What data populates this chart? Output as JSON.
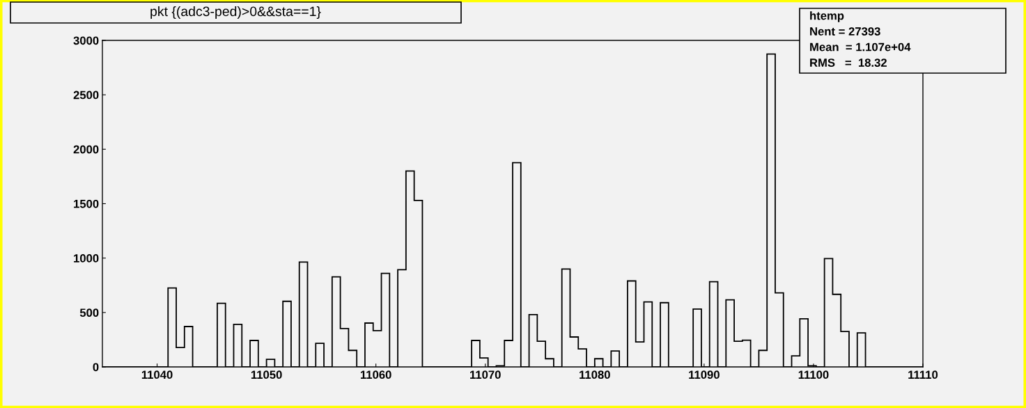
{
  "chart_data": {
    "type": "histogram",
    "title": "pkt {(adc3-ped)>0&&sta==1}",
    "annotations": [
      "htemp",
      "Nent = 27393",
      "Mean  = 1.107e+04",
      "RMS   =  18.32"
    ],
    "bins": [
      11035,
      11035.75,
      11036.5,
      11037.25,
      11038,
      11038.75,
      11039.5,
      11040.25,
      11041,
      11041.75,
      11042.5,
      11043.25,
      11044,
      11044.75,
      11045.5,
      11046.25,
      11047,
      11047.75,
      11048.5,
      11049.25,
      11050,
      11050.75,
      11051.5,
      11052.25,
      11053,
      11053.75,
      11054.5,
      11055.25,
      11056,
      11056.75,
      11057.5,
      11058.25,
      11059,
      11059.75,
      11060.5,
      11061.25,
      11062,
      11062.75,
      11063.5,
      11064.25,
      11065,
      11065.75,
      11066.5,
      11067.25,
      11068,
      11068.75,
      11069.5,
      11070.25,
      11071,
      11071.75,
      11072.5,
      11073.25,
      11074,
      11074.75,
      11075.5,
      11076.25,
      11077,
      11077.75,
      11078.5,
      11079.25,
      11080,
      11080.75,
      11081.5,
      11082.25,
      11083,
      11083.75,
      11084.5,
      11085.25,
      11086,
      11086.75,
      11087.5,
      11088.25,
      11089,
      11089.75,
      11090.5,
      11091.25,
      11092,
      11092.75,
      11093.5,
      11094.25,
      11095,
      11095.75,
      11096.5,
      11097.25,
      11098,
      11098.75,
      11099.5,
      11100.25,
      11101,
      11101.75,
      11102.5,
      11103.25,
      11104,
      11104.75,
      11105.5,
      11106.25,
      11107,
      11107.75,
      11108.5,
      11109.25,
      11110
    ],
    "values": [
      0,
      0,
      0,
      0,
      0,
      0,
      0,
      0,
      725,
      178,
      371,
      0,
      0,
      0,
      584,
      0,
      391,
      0,
      243,
      0,
      69,
      0,
      603,
      0,
      963,
      0,
      217,
      0,
      828,
      352,
      152,
      0,
      403,
      333,
      860,
      0,
      893,
      1800,
      1530,
      0,
      0,
      0,
      0,
      0,
      0,
      243,
      82,
      0,
      11,
      243,
      1877,
      0,
      481,
      236,
      75,
      0,
      899,
      275,
      165,
      0,
      75,
      0,
      146,
      0,
      790,
      230,
      597,
      0,
      590,
      0,
      0,
      0,
      532,
      0,
      783,
      0,
      616,
      236,
      245,
      0,
      152,
      2875,
      680,
      0,
      101,
      442,
      11,
      0,
      995,
      667,
      326,
      0,
      313,
      0,
      0,
      0,
      0,
      0,
      0,
      0
    ],
    "color": "#000000",
    "xlim": [
      11035,
      11110
    ],
    "ylim": [
      0,
      3000
    ],
    "xticks": [
      11040,
      11050,
      11060,
      11070,
      11080,
      11090,
      11100,
      11110
    ],
    "yticks": [
      0,
      500,
      1000,
      1500,
      2000,
      2500,
      3000
    ],
    "grid": false,
    "legend": false
  }
}
